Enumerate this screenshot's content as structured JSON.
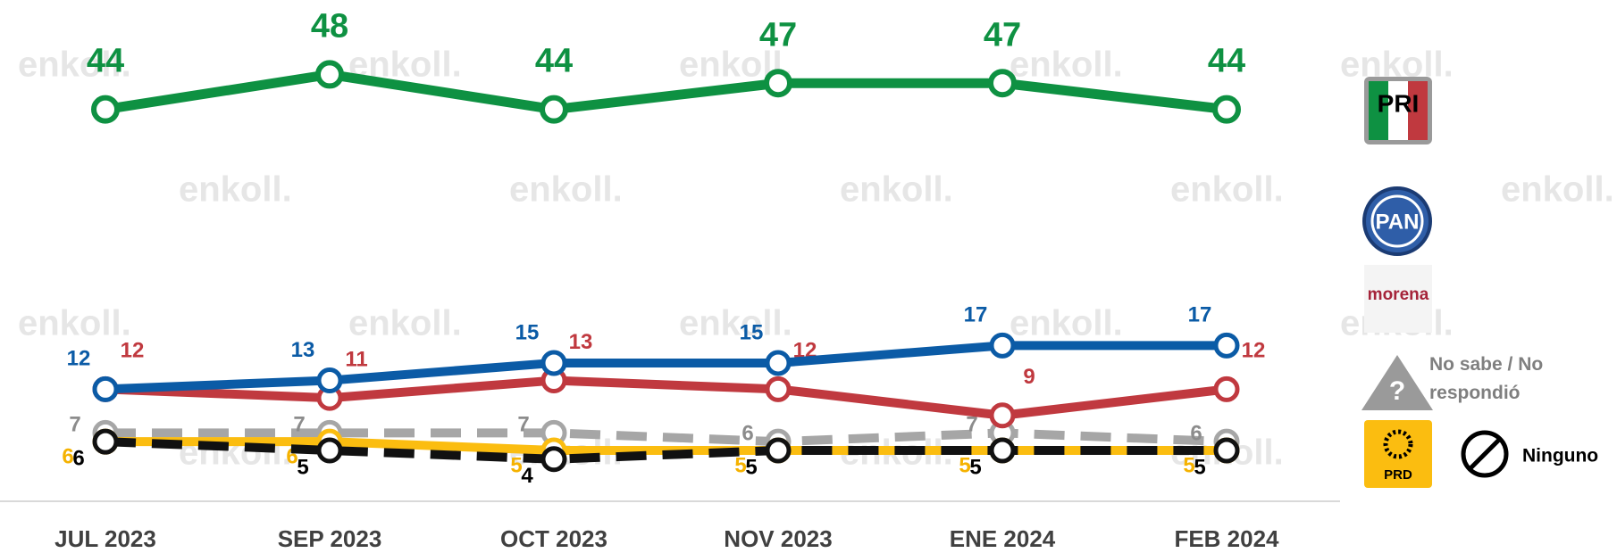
{
  "chart_data": {
    "type": "line",
    "watermark": "enkoll.",
    "categories": [
      "JUL 2023",
      "SEP 2023",
      "OCT 2023",
      "NOV 2023",
      "ENE 2024",
      "FEB 2024"
    ],
    "ylim": [
      0,
      56
    ],
    "series": [
      {
        "name": "PRI",
        "color": "#0e9142",
        "values": [
          44,
          48,
          44,
          47,
          47,
          44
        ]
      },
      {
        "name": "PAN",
        "color": "#0b5ba6",
        "values": [
          12,
          13,
          15,
          15,
          17,
          17
        ]
      },
      {
        "name": "morena",
        "color": "#c0393f",
        "values": [
          12,
          11,
          13,
          12,
          9,
          12
        ]
      },
      {
        "name": "No sabe / No respondió",
        "color": "#a6a6a6",
        "dashed": true,
        "values": [
          7,
          7,
          7,
          6,
          7,
          6
        ]
      },
      {
        "name": "PRD",
        "color": "#fbbd10",
        "values": [
          6,
          6,
          5,
          5,
          5,
          5
        ]
      },
      {
        "name": "Ninguno",
        "color": "#111111",
        "dashed": true,
        "values": [
          6,
          5,
          4,
          5,
          5,
          5
        ]
      }
    ]
  }
}
